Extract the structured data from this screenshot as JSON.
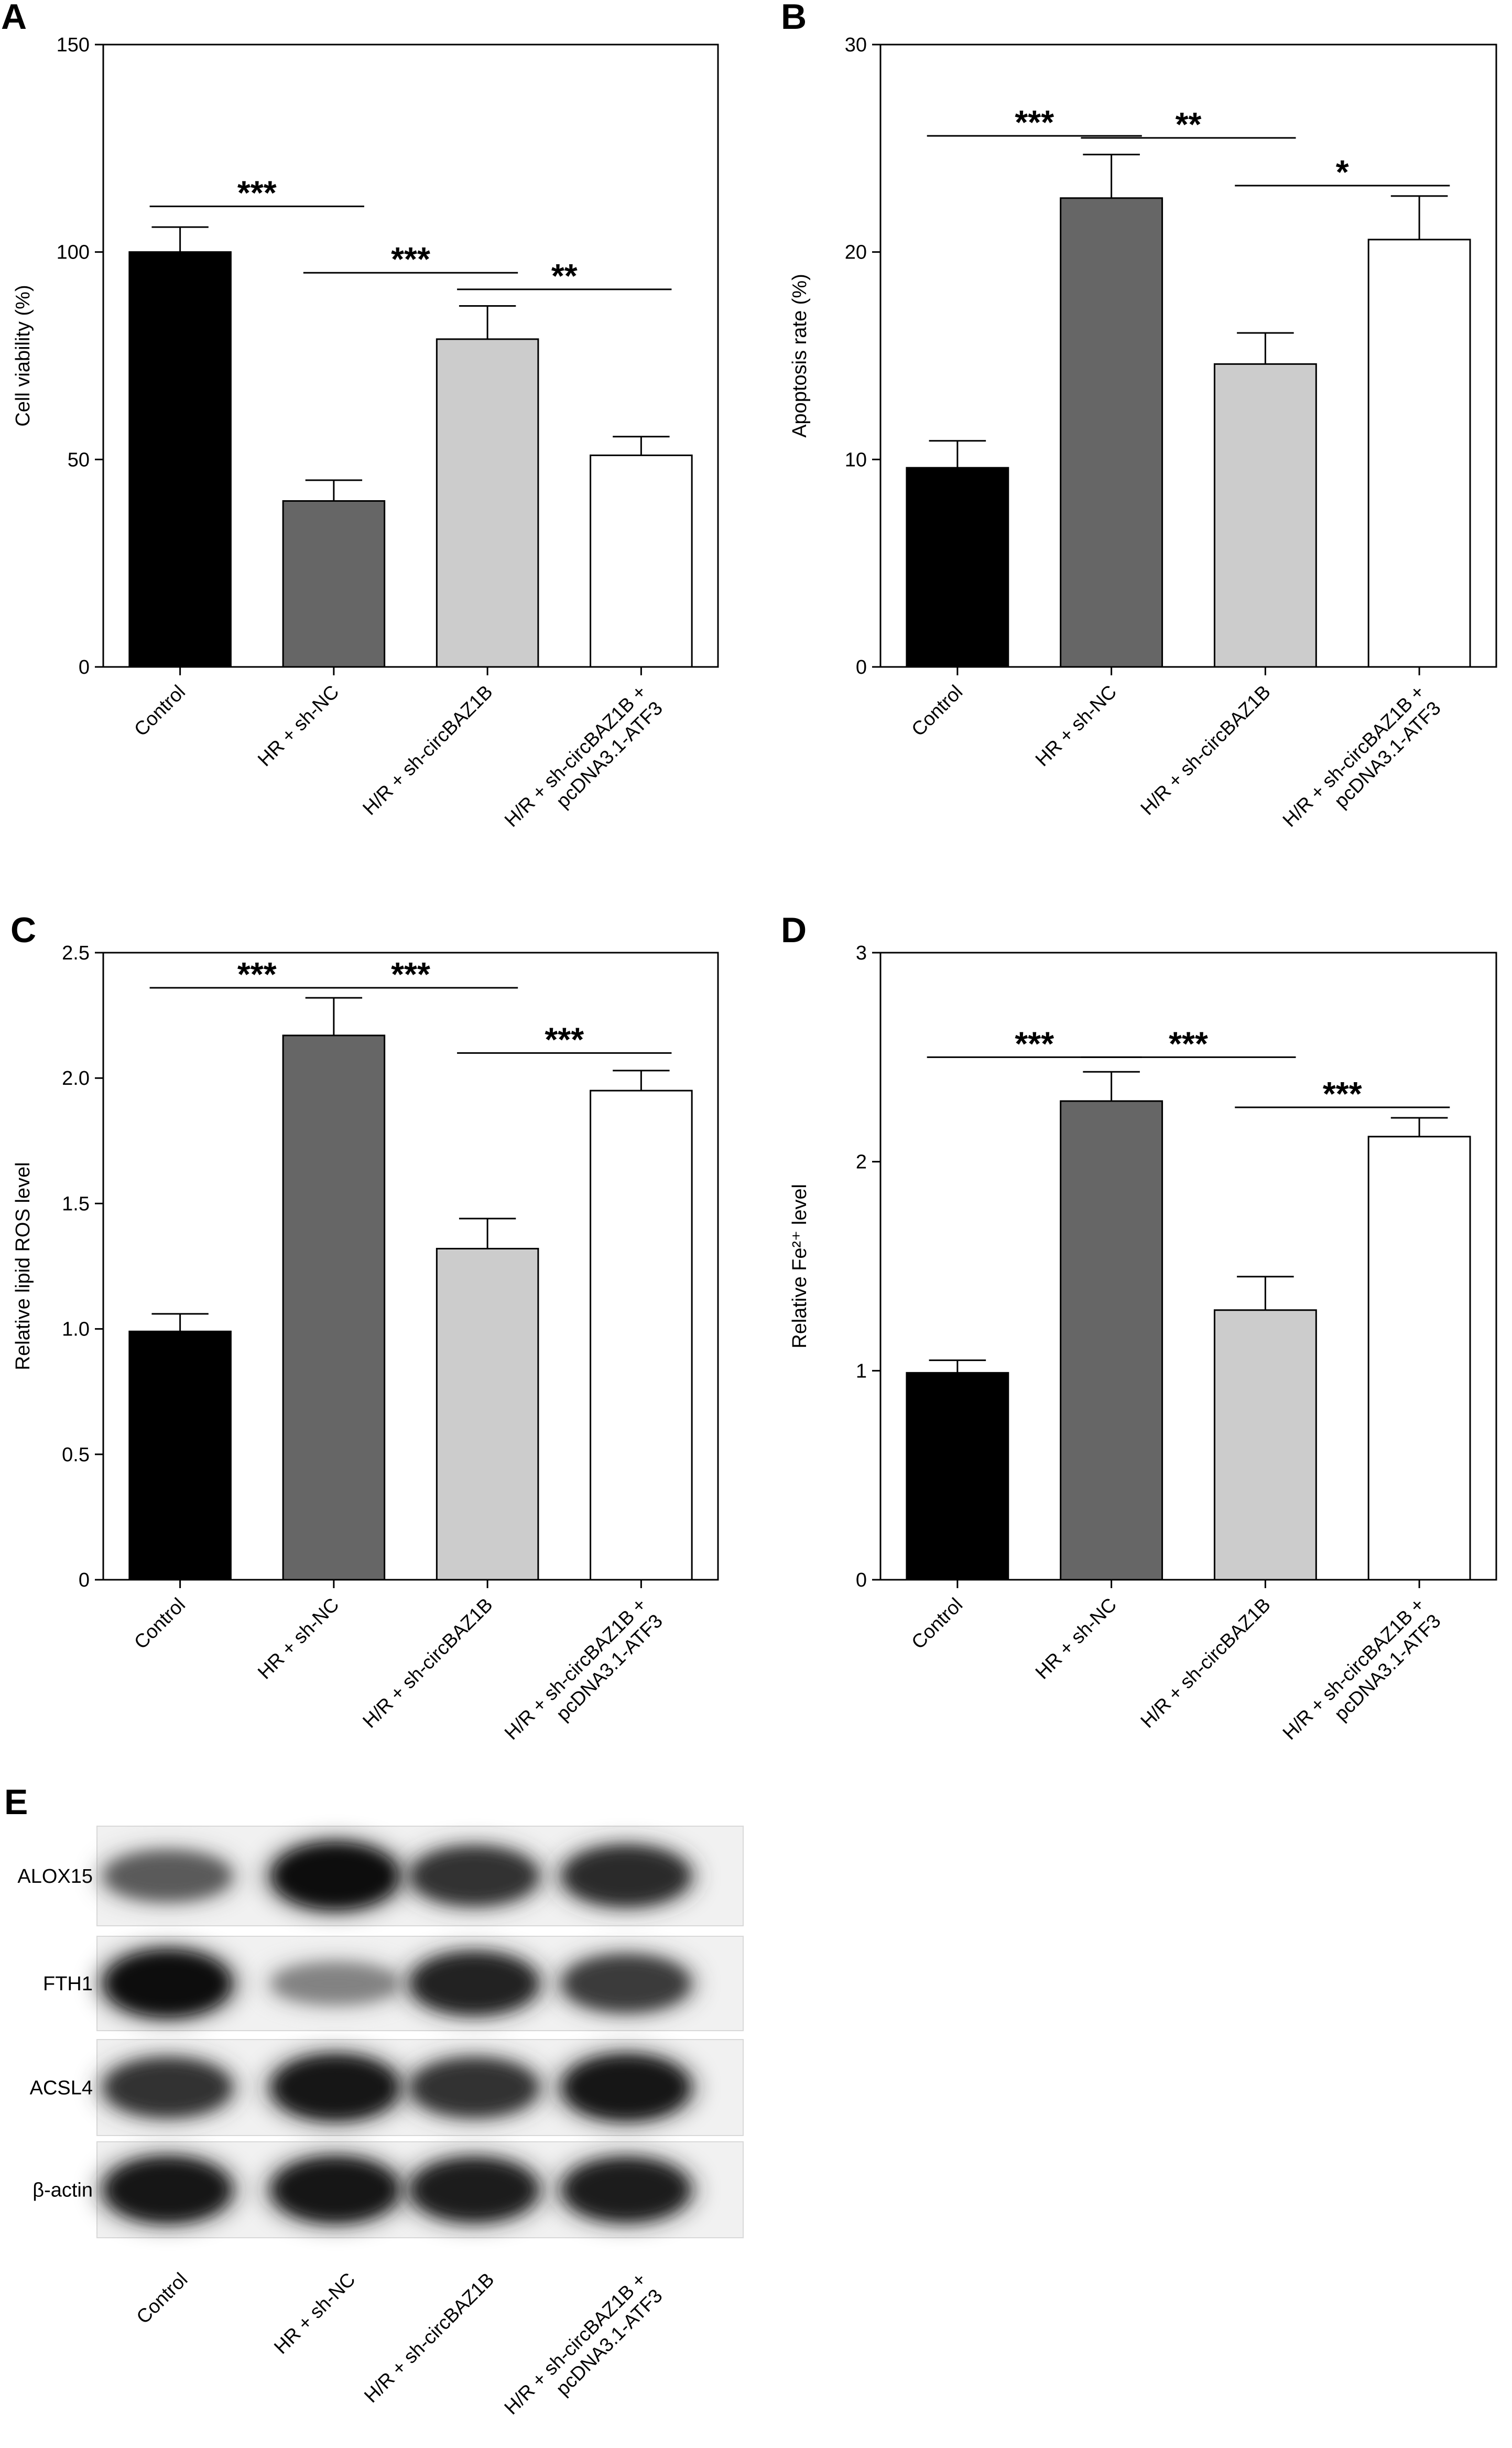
{
  "chart_data": [
    {
      "type": "bar",
      "panel": "A",
      "ylabel": "Cell viability (%)",
      "ylim": [
        0,
        150
      ],
      "yticks": [
        0,
        50,
        100,
        150
      ],
      "categories": [
        "Control",
        "HR + sh-NC",
        "H/R + sh-circBAZ1B",
        "H/R + sh-circBAZ1B +\npcDNA3.1-ATF3"
      ],
      "values": [
        100,
        40,
        79,
        51
      ],
      "errors": [
        6,
        5,
        8,
        4.5
      ],
      "colors": [
        "#000000",
        "#666666",
        "#cccccc",
        "#ffffff"
      ],
      "significance": [
        {
          "from": 0,
          "to": 1,
          "label": "***",
          "y": 111
        },
        {
          "from": 1,
          "to": 2,
          "label": "***",
          "y": 95
        },
        {
          "from": 2,
          "to": 3,
          "label": "**",
          "y": 91
        }
      ]
    },
    {
      "type": "bar",
      "panel": "B",
      "ylabel": "Apoptosis rate (%)",
      "ylim": [
        0,
        30
      ],
      "yticks": [
        0,
        10,
        20,
        30
      ],
      "categories": [
        "Control",
        "HR + sh-NC",
        "H/R + sh-circBAZ1B",
        "H/R + sh-circBAZ1B +\npcDNA3.1-ATF3"
      ],
      "values": [
        9.6,
        22.6,
        14.6,
        20.6
      ],
      "errors": [
        1.3,
        2.1,
        1.5,
        2.1
      ],
      "colors": [
        "#000000",
        "#666666",
        "#cccccc",
        "#ffffff"
      ],
      "significance": [
        {
          "from": 0,
          "to": 1,
          "label": "***",
          "y": 25.6
        },
        {
          "from": 1,
          "to": 2,
          "label": "**",
          "y": 25.5
        },
        {
          "from": 2,
          "to": 3,
          "label": "*",
          "y": 23.2
        }
      ]
    },
    {
      "type": "bar",
      "panel": "C",
      "ylabel": "Relative lipid ROS level",
      "ylim": [
        0,
        2.5
      ],
      "yticks": [
        0,
        0.5,
        1.0,
        1.5,
        2.0,
        2.5
      ],
      "ytick_labels": [
        "0",
        "0.5",
        "1.0",
        "1.5",
        "2.0",
        "2.5"
      ],
      "categories": [
        "Control",
        "HR + sh-NC",
        "H/R + sh-circBAZ1B",
        "H/R + sh-circBAZ1B +\npcDNA3.1-ATF3"
      ],
      "values": [
        0.99,
        2.17,
        1.32,
        1.95
      ],
      "errors": [
        0.07,
        0.15,
        0.12,
        0.08
      ],
      "colors": [
        "#000000",
        "#666666",
        "#cccccc",
        "#ffffff"
      ],
      "significance": [
        {
          "from": 0,
          "to": 1,
          "label": "***",
          "y": 2.36
        },
        {
          "from": 1,
          "to": 2,
          "label": "***",
          "y": 2.36
        },
        {
          "from": 2,
          "to": 3,
          "label": "***",
          "y": 2.1
        }
      ]
    },
    {
      "type": "bar",
      "panel": "D",
      "ylabel": "Relative Fe²⁺ level",
      "ylim": [
        0,
        3
      ],
      "yticks": [
        0,
        1,
        2,
        3
      ],
      "categories": [
        "Control",
        "HR + sh-NC",
        "H/R + sh-circBAZ1B",
        "H/R + sh-circBAZ1B +\npcDNA3.1-ATF3"
      ],
      "values": [
        0.99,
        2.29,
        1.29,
        2.12
      ],
      "errors": [
        0.06,
        0.14,
        0.16,
        0.09
      ],
      "colors": [
        "#000000",
        "#666666",
        "#cccccc",
        "#ffffff"
      ],
      "significance": [
        {
          "from": 0,
          "to": 1,
          "label": "***",
          "y": 2.5
        },
        {
          "from": 1,
          "to": 2,
          "label": "***",
          "y": 2.5
        },
        {
          "from": 2,
          "to": 3,
          "label": "***",
          "y": 2.26
        }
      ]
    }
  ],
  "western_blot": {
    "panel": "E",
    "proteins": [
      "ALOX15",
      "FTH1",
      "ACSL4",
      "β-actin"
    ],
    "lanes": [
      "Control",
      "HR + sh-NC",
      "H/R + sh-circBAZ1B",
      "H/R + sh-circBAZ1B +\npcDNA3.1-ATF3"
    ],
    "band_intensity": [
      [
        0.5,
        1.0,
        0.75,
        0.8
      ],
      [
        1.0,
        0.25,
        0.85,
        0.7
      ],
      [
        0.75,
        0.95,
        0.75,
        0.95
      ],
      [
        0.95,
        0.95,
        0.9,
        0.9
      ]
    ]
  }
}
